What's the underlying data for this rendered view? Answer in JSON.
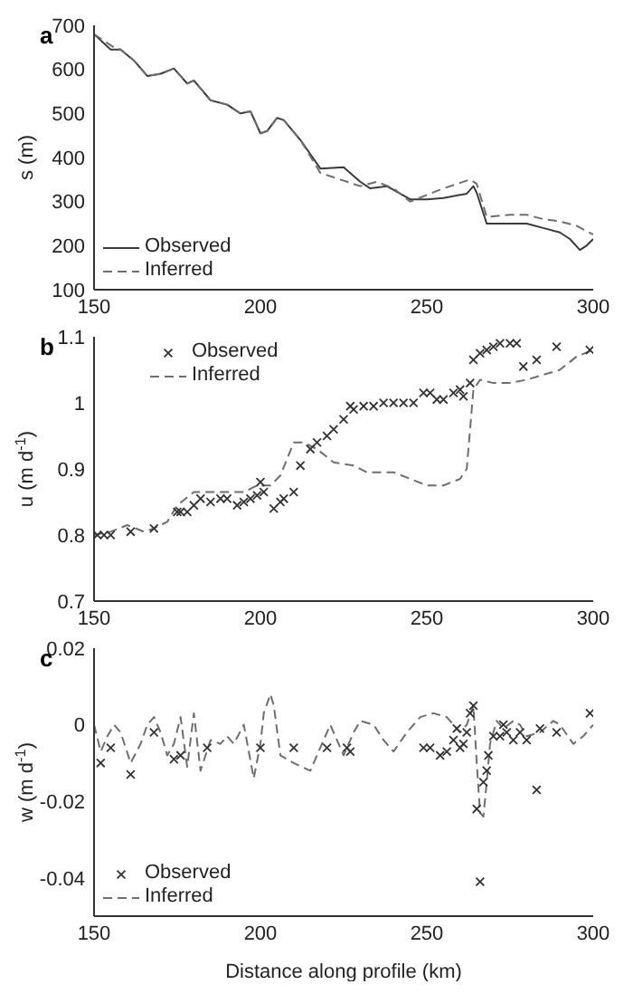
{
  "chart_data": [
    {
      "type": "line",
      "title": "a",
      "ylabel": "s (m)",
      "xlim": [
        150,
        300
      ],
      "xticks": [
        150,
        200,
        250,
        300
      ],
      "ylim": [
        100,
        700
      ],
      "yticks": [
        100,
        200,
        300,
        400,
        500,
        600,
        700
      ],
      "legend": "bottom left",
      "grid": false,
      "series": [
        {
          "name": "Observed",
          "color": "#3a3a3a",
          "line_style": "solid",
          "marker": "none",
          "x": [
            150,
            155,
            158,
            162,
            166,
            170,
            174,
            178,
            180,
            185,
            190,
            194,
            197,
            200,
            202,
            205,
            207,
            212,
            218,
            225,
            230,
            233,
            238,
            245,
            250,
            255,
            262,
            264,
            265,
            268,
            275,
            280,
            285,
            290,
            293,
            296,
            298,
            300
          ],
          "values": [
            680,
            645,
            645,
            620,
            585,
            590,
            602,
            568,
            575,
            530,
            520,
            500,
            505,
            455,
            460,
            490,
            485,
            440,
            375,
            378,
            345,
            330,
            335,
            305,
            305,
            308,
            318,
            335,
            320,
            250,
            250,
            250,
            240,
            230,
            215,
            190,
            200,
            215
          ]
        },
        {
          "name": "Inferred",
          "color": "#6e6e6e",
          "line_style": "dashed",
          "marker": "none",
          "x": [
            150,
            156,
            158,
            162,
            166,
            170,
            174,
            178,
            180,
            185,
            190,
            194,
            197,
            200,
            202,
            205,
            207,
            212,
            218,
            224,
            230,
            235,
            240,
            245,
            250,
            255,
            263,
            265,
            268,
            275,
            280,
            285,
            290,
            295,
            300
          ],
          "values": [
            680,
            650,
            645,
            620,
            585,
            590,
            602,
            568,
            575,
            530,
            520,
            500,
            505,
            455,
            460,
            490,
            485,
            440,
            365,
            350,
            335,
            345,
            330,
            300,
            315,
            330,
            350,
            340,
            265,
            270,
            270,
            260,
            255,
            245,
            225
          ]
        }
      ]
    },
    {
      "type": "scatter",
      "title": "b",
      "ylabel": "u (m d$^{-1}$)",
      "xlim": [
        150,
        300
      ],
      "xticks": [
        150,
        200,
        250,
        300
      ],
      "ylim": [
        0.7,
        1.1
      ],
      "yticks": [
        0.7,
        0.8,
        0.9,
        1,
        1.1
      ],
      "legend": "top left",
      "grid": false,
      "series": [
        {
          "name": "Observed",
          "color": "#333333",
          "marker": "cross",
          "x": [
            151,
            153,
            155,
            161,
            168,
            175,
            176,
            178,
            180,
            182,
            185,
            188,
            190,
            193,
            195,
            197,
            199,
            200,
            201,
            204,
            206,
            207,
            210,
            212,
            215,
            217,
            220,
            222,
            225,
            227,
            228,
            231,
            234,
            237,
            240,
            243,
            246,
            249,
            251,
            253,
            255,
            258,
            260,
            261,
            263,
            264,
            266,
            268,
            270,
            272,
            275,
            277,
            279,
            283,
            289,
            299
          ],
          "values": [
            0.8,
            0.8,
            0.8,
            0.805,
            0.81,
            0.835,
            0.835,
            0.835,
            0.845,
            0.855,
            0.85,
            0.855,
            0.855,
            0.845,
            0.85,
            0.855,
            0.86,
            0.88,
            0.865,
            0.84,
            0.85,
            0.855,
            0.865,
            0.905,
            0.93,
            0.94,
            0.95,
            0.96,
            0.975,
            0.995,
            0.99,
            0.995,
            0.995,
            1,
            1,
            1,
            1,
            1.015,
            1.015,
            1.005,
            1.005,
            1.015,
            1.02,
            1.01,
            1.03,
            1.065,
            1.075,
            1.08,
            1.085,
            1.09,
            1.09,
            1.09,
            1.055,
            1.065,
            1.085,
            1.08
          ]
        },
        {
          "name": "Inferred",
          "type": "line",
          "color": "#6e6e6e",
          "line_style": "dashed",
          "marker": "none",
          "x": [
            150,
            155,
            160,
            165,
            168,
            172,
            175,
            180,
            185,
            190,
            195,
            199,
            203,
            206,
            210,
            213,
            217,
            222,
            228,
            232,
            240,
            245,
            250,
            255,
            260,
            262,
            263,
            264,
            266,
            270,
            275,
            280,
            290,
            295,
            300
          ],
          "values": [
            0.8,
            0.805,
            0.815,
            0.805,
            0.81,
            0.82,
            0.845,
            0.865,
            0.865,
            0.865,
            0.865,
            0.875,
            0.875,
            0.89,
            0.94,
            0.94,
            0.93,
            0.91,
            0.905,
            0.895,
            0.895,
            0.885,
            0.875,
            0.875,
            0.885,
            0.9,
            0.96,
            1.02,
            1.035,
            1.03,
            1.03,
            1.035,
            1.05,
            1.07,
            1.08
          ]
        }
      ]
    },
    {
      "type": "scatter",
      "title": "c",
      "xlabel": "Distance along profile (km)",
      "ylabel": "w (m d$^{-1}$)",
      "xlim": [
        150,
        300
      ],
      "xticks": [
        150,
        200,
        250,
        300
      ],
      "ylim": [
        -0.05,
        0.02
      ],
      "yticks": [
        0.02,
        0,
        -0.02,
        -0.04
      ],
      "legend": "bottom left",
      "grid": false,
      "series": [
        {
          "name": "Observed",
          "color": "#333333",
          "marker": "cross",
          "x": [
            152,
            155,
            161,
            168,
            174,
            176,
            184,
            200,
            210,
            220,
            226,
            227,
            249,
            251,
            254,
            256,
            258,
            259,
            260,
            261,
            262,
            263,
            264,
            265,
            266,
            267,
            268,
            268.5,
            270,
            272,
            273,
            274,
            276,
            278,
            280,
            283,
            284,
            289,
            299
          ],
          "values": [
            -0.01,
            -0.006,
            -0.013,
            -0.002,
            -0.009,
            -0.008,
            -0.006,
            -0.006,
            -0.006,
            -0.006,
            -0.006,
            -0.007,
            -0.006,
            -0.006,
            -0.008,
            -0.007,
            -0.004,
            -0.001,
            -0.006,
            -0.005,
            -0.002,
            0.003,
            0.005,
            -0.022,
            -0.041,
            -0.015,
            -0.012,
            -0.008,
            -0.003,
            -0.003,
            0,
            -0.002,
            -0.004,
            -0.002,
            -0.004,
            -0.017,
            -0.001,
            -0.002,
            0.003
          ]
        },
        {
          "name": "Inferred",
          "type": "line",
          "color": "#6e6e6e",
          "line_style": "dashed",
          "marker": "none",
          "x": [
            150,
            152,
            154,
            156,
            158,
            161,
            164,
            166,
            168,
            170,
            172,
            174,
            176,
            178,
            180,
            182,
            185,
            188,
            190,
            192,
            195,
            198,
            200,
            201,
            203,
            204,
            206,
            210,
            215,
            218,
            221,
            225,
            228,
            230,
            234,
            237,
            240,
            244,
            248,
            252,
            256,
            258,
            260,
            262,
            264,
            265,
            266,
            267,
            268,
            269,
            271,
            273,
            276,
            278,
            280,
            284,
            288,
            290,
            294,
            297,
            300
          ],
          "values": [
            0,
            -0.007,
            -0.003,
            0,
            -0.002,
            -0.01,
            -0.005,
            0,
            0.002,
            -0.002,
            -0.008,
            -0.005,
            0.002,
            -0.011,
            0.003,
            -0.012,
            -0.004,
            -0.005,
            -0.003,
            -0.005,
            0,
            -0.014,
            -0.005,
            0.003,
            0.008,
            0.005,
            -0.008,
            -0.01,
            -0.012,
            -0.006,
            0,
            -0.008,
            -0.002,
            0.001,
            0,
            -0.004,
            -0.007,
            -0.002,
            0.002,
            0.003,
            0.002,
            0,
            -0.002,
            0,
            0.005,
            -0.01,
            -0.023,
            -0.024,
            -0.015,
            -0.005,
            0.001,
            -0.001,
            0.001,
            0,
            -0.003,
            -0.002,
            0.001,
            0,
            -0.005,
            -0.003,
            0
          ]
        }
      ]
    }
  ]
}
